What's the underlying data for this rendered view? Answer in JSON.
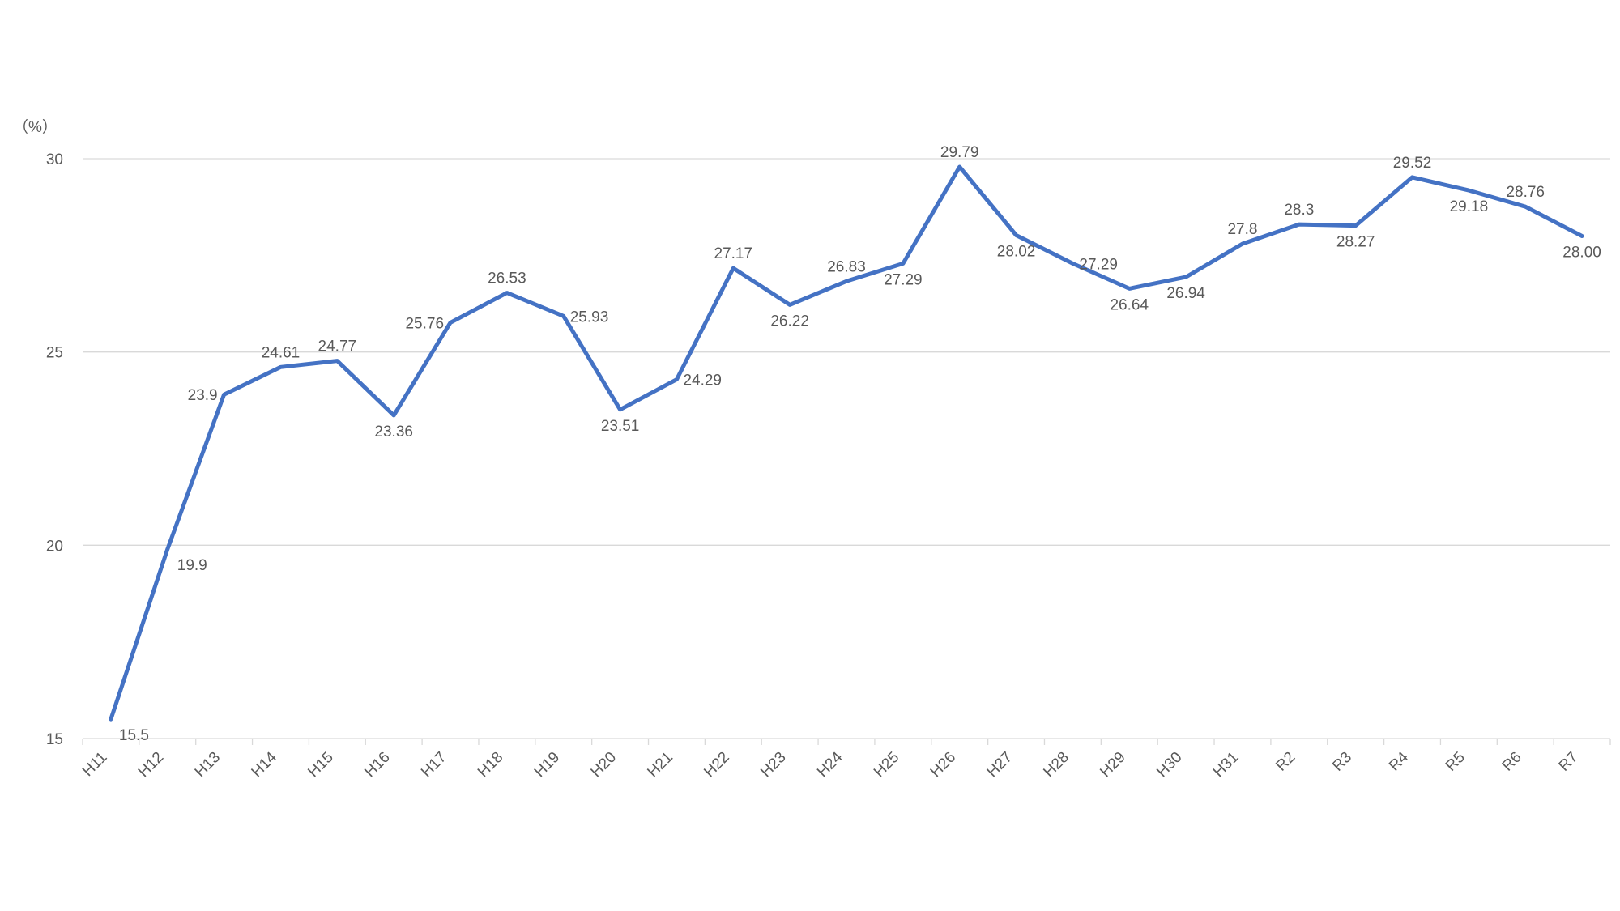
{
  "chart_data": {
    "type": "line",
    "unit_label": "（%）",
    "categories": [
      "H11",
      "H12",
      "H13",
      "H14",
      "H15",
      "H16",
      "H17",
      "H18",
      "H19",
      "H20",
      "H21",
      "H22",
      "H23",
      "H24",
      "H25",
      "H26",
      "H27",
      "H28",
      "H29",
      "H30",
      "H31",
      "R2",
      "R3",
      "R4",
      "R5",
      "R6",
      "R7"
    ],
    "series": [
      {
        "values": [
          15.5,
          19.9,
          23.9,
          24.61,
          24.77,
          23.36,
          25.76,
          26.53,
          25.93,
          23.51,
          24.29,
          27.17,
          26.22,
          26.83,
          27.29,
          29.79,
          28.02,
          27.29,
          26.64,
          26.94,
          27.8,
          28.3,
          28.27,
          29.52,
          29.18,
          28.76,
          28.0
        ],
        "data_labels": [
          "15.5",
          "19.9",
          "23.9",
          "24.61",
          "24.77",
          "23.36",
          "25.76",
          "26.53",
          "25.93",
          "23.51",
          "24.29",
          "27.17",
          "26.22",
          "26.83",
          "27.29",
          "29.79",
          "28.02",
          "27.29",
          "26.64",
          "26.94",
          "27.8",
          "28.3",
          "28.27",
          "29.52",
          "29.18",
          "28.76",
          "28.00"
        ],
        "label_positions": [
          "below",
          "below",
          "left",
          "above",
          "above",
          "below",
          "left",
          "above",
          "right",
          "below",
          "right",
          "above",
          "below",
          "above",
          "below",
          "above",
          "below",
          "right",
          "below",
          "below",
          "above",
          "above",
          "below",
          "above",
          "below",
          "above",
          "below"
        ],
        "color": "#4472c4"
      }
    ],
    "yticks": [
      "15",
      "20",
      "25",
      "30"
    ],
    "ylim": [
      15,
      30
    ],
    "grid": true,
    "legend": "none"
  }
}
